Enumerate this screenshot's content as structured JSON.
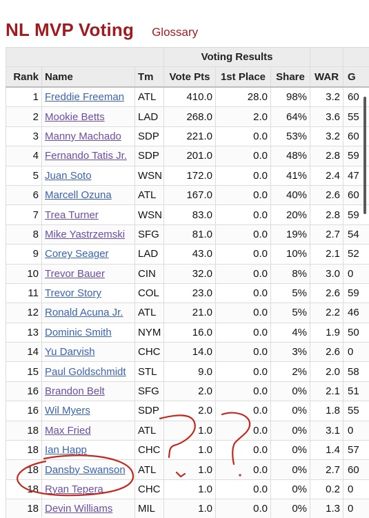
{
  "header": {
    "title": "NL MVP Voting",
    "glossary_link": "Glossary"
  },
  "table": {
    "over_header": "Voting Results",
    "columns": [
      "Rank",
      "Name",
      "Tm",
      "Vote Pts",
      "1st Place",
      "Share",
      "WAR",
      "G"
    ],
    "rows": [
      {
        "rank": "1",
        "name": "Freddie Freeman",
        "tm": "ATL",
        "pts": "410.0",
        "first": "28.0",
        "share": "98%",
        "war": "3.2",
        "g": "60",
        "visited": false
      },
      {
        "rank": "2",
        "name": "Mookie Betts",
        "tm": "LAD",
        "pts": "268.0",
        "first": "2.0",
        "share": "64%",
        "war": "3.6",
        "g": "55",
        "visited": true
      },
      {
        "rank": "3",
        "name": "Manny Machado",
        "tm": "SDP",
        "pts": "221.0",
        "first": "0.0",
        "share": "53%",
        "war": "3.2",
        "g": "60",
        "visited": true
      },
      {
        "rank": "4",
        "name": "Fernando Tatis Jr.",
        "tm": "SDP",
        "pts": "201.0",
        "first": "0.0",
        "share": "48%",
        "war": "2.8",
        "g": "59",
        "visited": true
      },
      {
        "rank": "5",
        "name": "Juan Soto",
        "tm": "WSN",
        "pts": "172.0",
        "first": "0.0",
        "share": "41%",
        "war": "2.4",
        "g": "47",
        "visited": false
      },
      {
        "rank": "6",
        "name": "Marcell Ozuna",
        "tm": "ATL",
        "pts": "167.0",
        "first": "0.0",
        "share": "40%",
        "war": "2.6",
        "g": "60",
        "visited": false
      },
      {
        "rank": "7",
        "name": "Trea Turner",
        "tm": "WSN",
        "pts": "83.0",
        "first": "0.0",
        "share": "20%",
        "war": "2.8",
        "g": "59",
        "visited": true
      },
      {
        "rank": "8",
        "name": "Mike Yastrzemski",
        "tm": "SFG",
        "pts": "81.0",
        "first": "0.0",
        "share": "19%",
        "war": "2.7",
        "g": "54",
        "visited": true
      },
      {
        "rank": "9",
        "name": "Corey Seager",
        "tm": "LAD",
        "pts": "43.0",
        "first": "0.0",
        "share": "10%",
        "war": "2.1",
        "g": "52",
        "visited": false
      },
      {
        "rank": "10",
        "name": "Trevor Bauer",
        "tm": "CIN",
        "pts": "32.0",
        "first": "0.0",
        "share": "8%",
        "war": "3.0",
        "g": "0",
        "visited": true
      },
      {
        "rank": "11",
        "name": "Trevor Story",
        "tm": "COL",
        "pts": "23.0",
        "first": "0.0",
        "share": "5%",
        "war": "2.6",
        "g": "59",
        "visited": false
      },
      {
        "rank": "12",
        "name": "Ronald Acuna Jr.",
        "tm": "ATL",
        "pts": "21.0",
        "first": "0.0",
        "share": "5%",
        "war": "2.2",
        "g": "46",
        "visited": false
      },
      {
        "rank": "13",
        "name": "Dominic Smith",
        "tm": "NYM",
        "pts": "16.0",
        "first": "0.0",
        "share": "4%",
        "war": "1.9",
        "g": "50",
        "visited": false
      },
      {
        "rank": "14",
        "name": "Yu Darvish",
        "tm": "CHC",
        "pts": "14.0",
        "first": "0.0",
        "share": "3%",
        "war": "2.6",
        "g": "0",
        "visited": false
      },
      {
        "rank": "15",
        "name": "Paul Goldschmidt",
        "tm": "STL",
        "pts": "9.0",
        "first": "0.0",
        "share": "2%",
        "war": "2.0",
        "g": "58",
        "visited": false
      },
      {
        "rank": "16",
        "name": "Brandon Belt",
        "tm": "SFG",
        "pts": "2.0",
        "first": "0.0",
        "share": "0%",
        "war": "2.1",
        "g": "51",
        "visited": true
      },
      {
        "rank": "16",
        "name": "Wil Myers",
        "tm": "SDP",
        "pts": "2.0",
        "first": "0.0",
        "share": "0%",
        "war": "1.8",
        "g": "55",
        "visited": false
      },
      {
        "rank": "18",
        "name": "Max Fried",
        "tm": "ATL",
        "pts": "1.0",
        "first": "0.0",
        "share": "0%",
        "war": "3.1",
        "g": "0",
        "visited": true
      },
      {
        "rank": "18",
        "name": "Ian Happ",
        "tm": "CHC",
        "pts": "1.0",
        "first": "0.0",
        "share": "0%",
        "war": "1.4",
        "g": "57",
        "visited": false
      },
      {
        "rank": "18",
        "name": "Dansby Swanson",
        "tm": "ATL",
        "pts": "1.0",
        "first": "0.0",
        "share": "0%",
        "war": "2.7",
        "g": "60",
        "visited": false
      },
      {
        "rank": "18",
        "name": "Ryan Tepera",
        "tm": "CHC",
        "pts": "1.0",
        "first": "0.0",
        "share": "0%",
        "war": "0.2",
        "g": "0",
        "visited": true
      },
      {
        "rank": "18",
        "name": "Devin Williams",
        "tm": "MIL",
        "pts": "1.0",
        "first": "0.0",
        "share": "0%",
        "war": "1.3",
        "g": "0",
        "visited": true
      }
    ]
  },
  "colors": {
    "title_red": "#9e1b1f",
    "link_blue": "#3b63b7",
    "link_visited": "#6b4ea8",
    "annotation_red": "#c4281c",
    "header_bg": "#ececec"
  }
}
